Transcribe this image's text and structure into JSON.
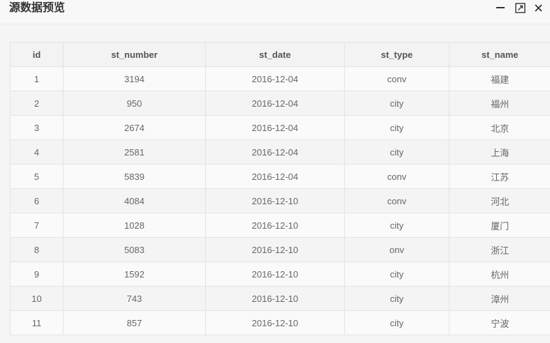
{
  "window": {
    "title": "源数据预览"
  },
  "icons": {
    "minimize": "minimize-icon",
    "maximize": "maximize-icon",
    "close": "close-icon"
  },
  "table": {
    "columns": [
      "id",
      "st_number",
      "st_date",
      "st_type",
      "st_name"
    ],
    "rows": [
      [
        "1",
        "3194",
        "2016-12-04",
        "conv",
        "福建"
      ],
      [
        "2",
        "950",
        "2016-12-04",
        "city",
        "福州"
      ],
      [
        "3",
        "2674",
        "2016-12-04",
        "city",
        "北京"
      ],
      [
        "4",
        "2581",
        "2016-12-04",
        "city",
        "上海"
      ],
      [
        "5",
        "5839",
        "2016-12-04",
        "conv",
        "江苏"
      ],
      [
        "6",
        "4084",
        "2016-12-10",
        "conv",
        "河北"
      ],
      [
        "7",
        "1028",
        "2016-12-10",
        "city",
        "厦门"
      ],
      [
        "8",
        "5083",
        "2016-12-10",
        "onv",
        "浙江"
      ],
      [
        "9",
        "1592",
        "2016-12-10",
        "city",
        "杭州"
      ],
      [
        "10",
        "743",
        "2016-12-10",
        "city",
        "漳州"
      ],
      [
        "11",
        "857",
        "2016-12-10",
        "city",
        "宁波"
      ]
    ]
  }
}
